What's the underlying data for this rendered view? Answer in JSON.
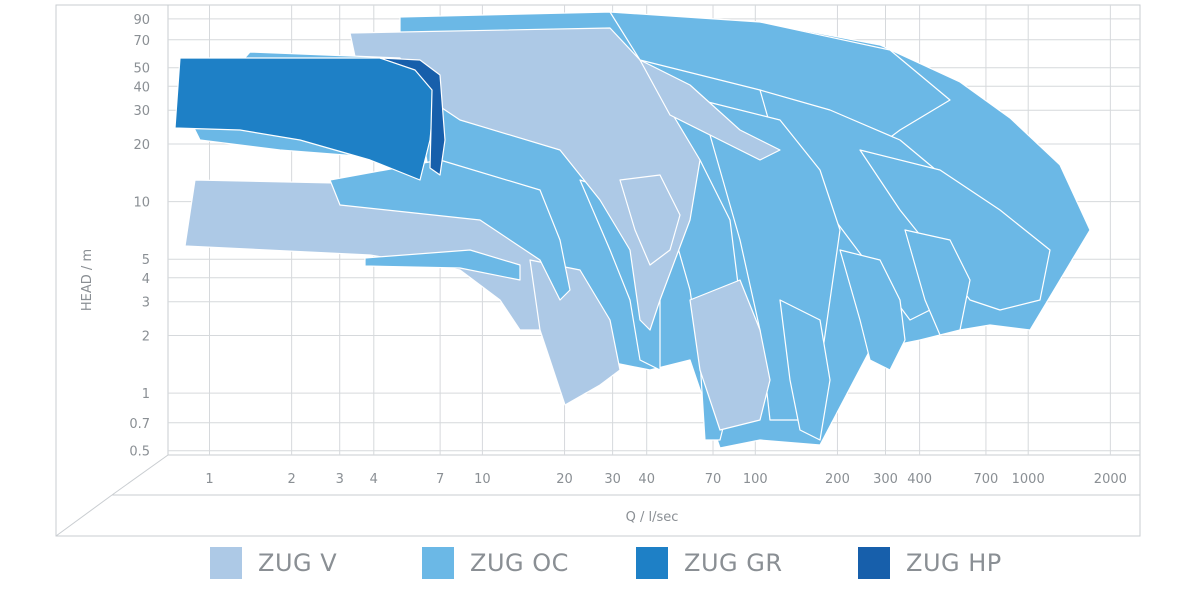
{
  "chart_data": {
    "type": "area",
    "xlabel": "Q / l/sec",
    "ylabel": "HEAD / m",
    "xscale": "log",
    "yscale": "log",
    "xlim": [
      0.7,
      2500
    ],
    "ylim": [
      0.5,
      100
    ],
    "x_ticks": [
      "1",
      "2",
      "3",
      "4",
      "7",
      "10",
      "20",
      "30",
      "40",
      "70",
      "100",
      "200",
      "300",
      "400",
      "700",
      "1000",
      "2000"
    ],
    "y_ticks": [
      "90",
      "70",
      "50",
      "40",
      "30",
      "20",
      "10",
      "5",
      "4",
      "3",
      "2",
      "1",
      "0.7",
      "0.5"
    ],
    "grid": true,
    "legend_position": "bottom",
    "series": [
      {
        "name": "ZUG V",
        "color": "#adc9e6"
      },
      {
        "name": "ZUG OC",
        "color": "#6bb8e6"
      },
      {
        "name": "ZUG GR",
        "color": "#1e80c6"
      },
      {
        "name": "ZUG HP",
        "color": "#175fab"
      }
    ]
  }
}
